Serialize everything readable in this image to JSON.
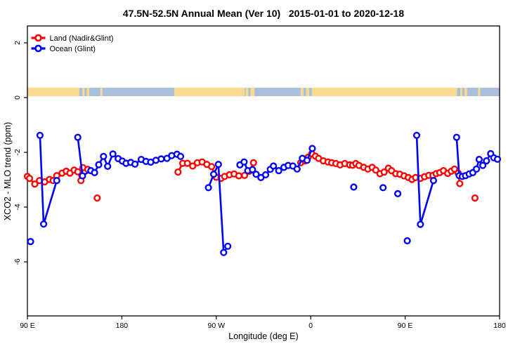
{
  "chart_data": {
    "type": "line",
    "title": "47.5N-52.5N Annual Mean (Ver 10)   2015-01-01 to 2020-12-18",
    "xlabel": "Longitude (deg E)",
    "ylabel": "XCO2 - MLO trend (ppm)",
    "x_domain": [
      90,
      540
    ],
    "ylim": [
      -7.95,
      2.6
    ],
    "grid": "off",
    "legend_position": "top-left-inside",
    "x_ticks": [
      {
        "lon": 90,
        "label": "90 E"
      },
      {
        "lon": 180,
        "label": "180"
      },
      {
        "lon": 270,
        "label": "90 W"
      },
      {
        "lon": 360,
        "label": "0"
      },
      {
        "lon": 450,
        "label": "90 E"
      },
      {
        "lon": 540,
        "label": "180"
      }
    ],
    "y_ticks": [
      {
        "val": 2,
        "label": "2"
      },
      {
        "val": 0,
        "label": "0"
      },
      {
        "val": -2,
        "label": "-2"
      },
      {
        "val": -4,
        "label": "-4"
      },
      {
        "val": -6,
        "label": "-6"
      }
    ],
    "legend": [
      {
        "label": "Land (Nadir&Glint)",
        "color": "#FF0000"
      },
      {
        "label": "Ocean (Glint)",
        "color": "#0000FF"
      }
    ],
    "surface_band": {
      "description": "land/ocean strip along longitude",
      "top_val": 0.36,
      "bottom_val": 0.05,
      "ocean_color": "#A8C0DE",
      "land_color": "#FBD98F",
      "land_segments_lon": [
        [
          90,
          139.5
        ],
        [
          142.5,
          144.5
        ],
        [
          146.5,
          149
        ],
        [
          159.5,
          161.5
        ],
        [
          230,
          297
        ],
        [
          298,
          300.5
        ],
        [
          302.5,
          306.5
        ],
        [
          350.5,
          353
        ],
        [
          355.5,
          358.5
        ],
        [
          361,
          499.5
        ],
        [
          502.5,
          504.5
        ],
        [
          506.5,
          509
        ],
        [
          519.5,
          521.5
        ]
      ]
    },
    "series": [
      {
        "name": "Land (Nadir&Glint)",
        "color": "#FF0000",
        "segments": [
          [
            [
              90,
              -2.88
            ],
            [
              92,
              -2.95
            ],
            [
              97,
              -3.16
            ],
            [
              101.5,
              -3.03
            ],
            [
              106.5,
              -3.08
            ],
            [
              111,
              -2.99
            ],
            [
              114.5,
              -3.03
            ],
            [
              118,
              -2.85
            ],
            [
              123,
              -2.76
            ],
            [
              127,
              -2.69
            ],
            [
              130.5,
              -2.76
            ],
            [
              134.5,
              -2.65
            ],
            [
              138,
              -2.71
            ],
            [
              141,
              -3.03
            ],
            [
              143,
              -2.56
            ],
            [
              147.5,
              -2.62
            ]
          ],
          [
            [
              156.5,
              -3.67
            ]
          ],
          [
            [
              233.5,
              -2.72
            ],
            [
              238,
              -2.4
            ],
            [
              242.5,
              -2.4
            ],
            [
              247.5,
              -2.5
            ],
            [
              252,
              -2.38
            ],
            [
              256.5,
              -2.35
            ],
            [
              261,
              -2.44
            ],
            [
              265.5,
              -2.52
            ],
            [
              270,
              -2.91
            ],
            [
              274.5,
              -2.95
            ],
            [
              278,
              -2.88
            ],
            [
              282.5,
              -2.82
            ],
            [
              287,
              -2.79
            ],
            [
              291.5,
              -2.86
            ],
            [
              297,
              -2.84
            ],
            [
              301.5,
              -2.69
            ],
            [
              305.5,
              -2.38
            ]
          ],
          [
            [
              350.5,
              -2.38
            ],
            [
              354.5,
              -2.31
            ],
            [
              357.5,
              -2.18
            ],
            [
              361,
              -2.05
            ],
            [
              364.5,
              -2.14
            ],
            [
              367.5,
              -2.22
            ],
            [
              372,
              -2.31
            ],
            [
              376.5,
              -2.35
            ],
            [
              380,
              -2.38
            ],
            [
              384,
              -2.41
            ],
            [
              388,
              -2.46
            ],
            [
              392.5,
              -2.41
            ],
            [
              397,
              -2.46
            ],
            [
              400,
              -2.47
            ],
            [
              403,
              -2.41
            ],
            [
              406,
              -2.48
            ],
            [
              410.5,
              -2.55
            ],
            [
              414.5,
              -2.61
            ],
            [
              418.5,
              -2.55
            ],
            [
              422,
              -2.65
            ],
            [
              426,
              -2.78
            ],
            [
              430,
              -2.72
            ],
            [
              434,
              -2.58
            ],
            [
              437,
              -2.67
            ],
            [
              441,
              -2.78
            ],
            [
              445,
              -2.8
            ],
            [
              449,
              -2.86
            ],
            [
              453,
              -2.92
            ],
            [
              456.5,
              -2.99
            ],
            [
              460,
              -2.92
            ],
            [
              464.5,
              -2.95
            ],
            [
              468.5,
              -2.89
            ],
            [
              472.5,
              -2.84
            ],
            [
              476.5,
              -2.84
            ],
            [
              479.5,
              -2.78
            ],
            [
              483,
              -2.74
            ],
            [
              486.5,
              -2.67
            ],
            [
              490.5,
              -2.77
            ],
            [
              494,
              -2.69
            ],
            [
              497,
              -2.61
            ],
            [
              500.5,
              -2.76
            ],
            [
              502,
              -3.14
            ]
          ],
          [
            [
              516.5,
              -3.67
            ]
          ]
        ]
      },
      {
        "name": "Ocean (Glint)",
        "color": "#0000FF",
        "segments": [
          [
            [
              93,
              -5.26
            ]
          ],
          [
            [
              102,
              -1.38
            ],
            [
              105.5,
              -4.62
            ],
            [
              118,
              -3.03
            ]
          ],
          [
            [
              138,
              -1.45
            ],
            [
              142.5,
              -2.86
            ],
            [
              150.5,
              -2.67
            ],
            [
              154,
              -2.74
            ],
            [
              158,
              -2.45
            ],
            [
              162.5,
              -2.15
            ],
            [
              166.5,
              -2.51
            ],
            [
              171.5,
              -2.06
            ],
            [
              176.5,
              -2.23
            ],
            [
              180.5,
              -2.32
            ],
            [
              184,
              -2.4
            ],
            [
              188.5,
              -2.37
            ],
            [
              192.5,
              -2.43
            ],
            [
              198.5,
              -2.26
            ],
            [
              203,
              -2.33
            ],
            [
              207.5,
              -2.36
            ],
            [
              212.5,
              -2.29
            ],
            [
              217.5,
              -2.24
            ],
            [
              223,
              -2.22
            ],
            [
              227.5,
              -2.12
            ],
            [
              232.5,
              -2.07
            ],
            [
              236,
              -2.15
            ]
          ],
          [
            [
              262.5,
              -3.29
            ],
            [
              267.5,
              -2.8
            ],
            [
              272,
              -2.44
            ],
            [
              277,
              -5.66
            ],
            [
              281,
              -5.43
            ]
          ],
          [
            [
              292.5,
              -2.46
            ],
            [
              296.5,
              -2.35
            ],
            [
              300,
              -2.67
            ],
            [
              304.5,
              -2.63
            ],
            [
              308,
              -2.8
            ],
            [
              312.5,
              -2.92
            ],
            [
              317,
              -2.82
            ],
            [
              321.5,
              -2.62
            ],
            [
              324.5,
              -2.5
            ],
            [
              329.5,
              -2.67
            ],
            [
              334.5,
              -2.55
            ],
            [
              338.5,
              -2.48
            ],
            [
              343,
              -2.5
            ],
            [
              347,
              -2.61
            ],
            [
              352,
              -2.22
            ],
            [
              356.5,
              -2.29
            ],
            [
              361.5,
              -1.86
            ]
          ],
          [
            [
              401,
              -3.27
            ]
          ],
          [
            [
              429,
              -3.29
            ]
          ],
          [
            [
              443,
              -3.51
            ]
          ],
          [
            [
              452,
              -5.23
            ]
          ],
          [
            [
              461,
              -1.38
            ],
            [
              464.5,
              -4.63
            ],
            [
              477,
              -3.03
            ]
          ],
          [
            [
              499,
              -1.45
            ],
            [
              501.5,
              -2.85
            ],
            [
              504.5,
              -2.88
            ],
            [
              507.5,
              -2.85
            ],
            [
              511,
              -2.79
            ],
            [
              514.5,
              -2.74
            ],
            [
              518,
              -2.61
            ],
            [
              520.5,
              -2.26
            ],
            [
              524,
              -2.48
            ],
            [
              527.5,
              -2.31
            ],
            [
              531.5,
              -2.05
            ],
            [
              534.5,
              -2.2
            ],
            [
              538,
              -2.25
            ]
          ]
        ]
      }
    ]
  }
}
